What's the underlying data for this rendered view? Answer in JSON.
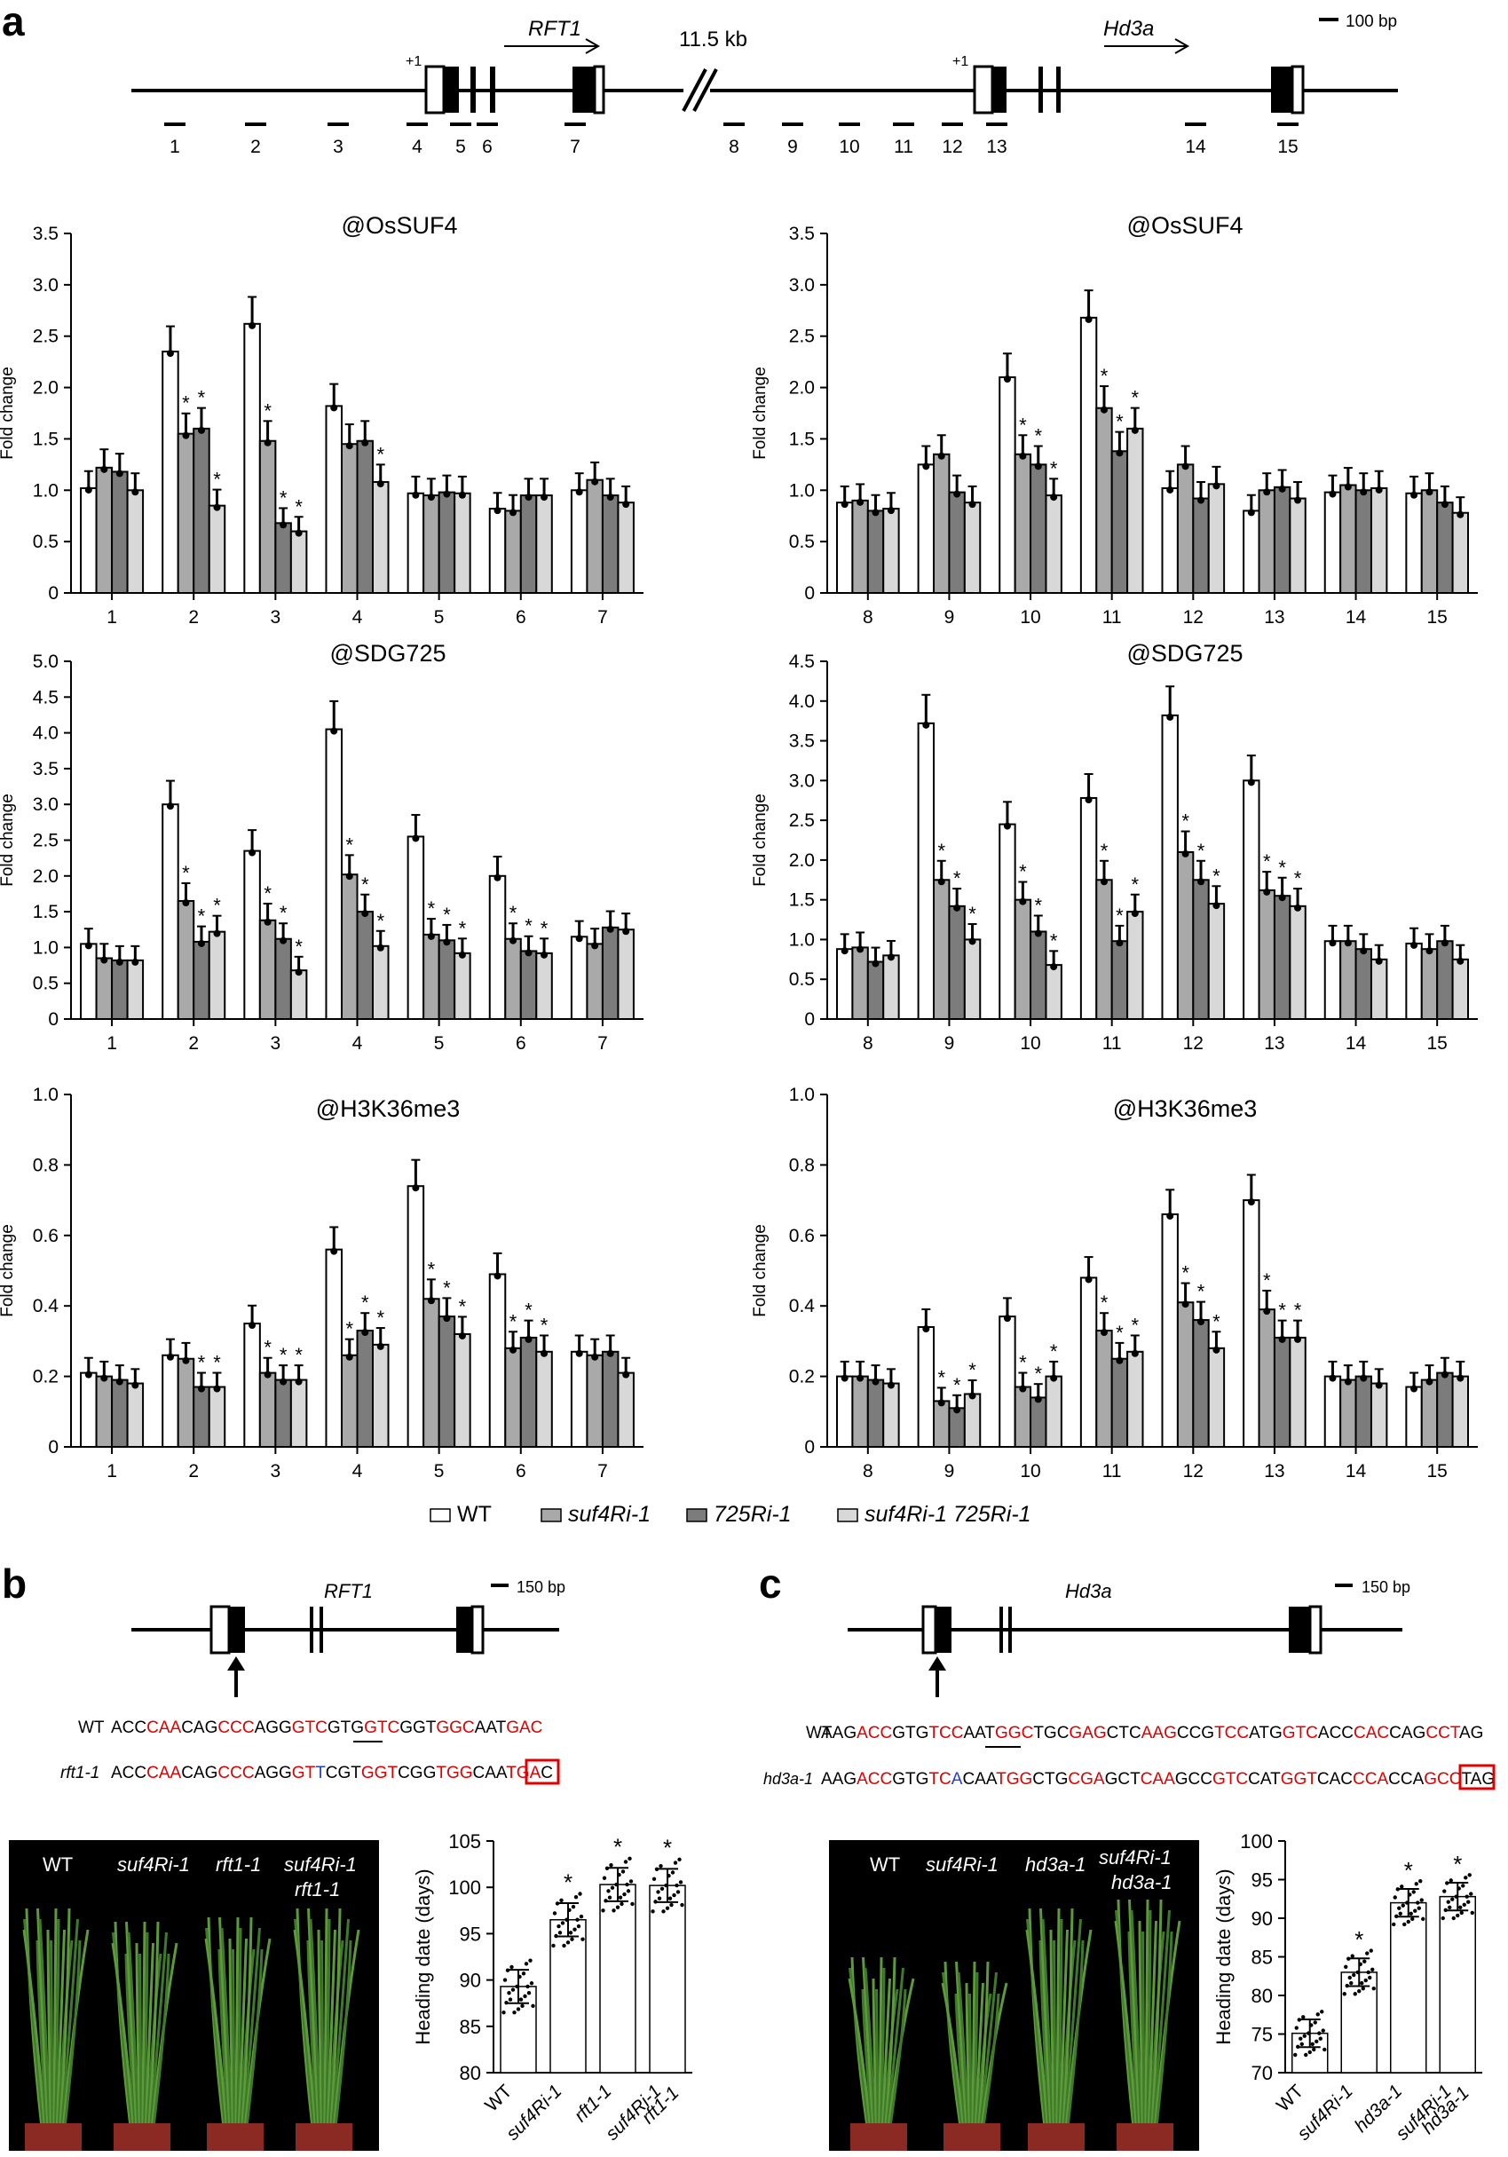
{
  "panels": {
    "a": "a",
    "b": "b",
    "c": "c"
  },
  "panel_a_diagram": {
    "gene1": "RFT1",
    "gene2": "Hd3a",
    "gap_label": "11.5 kb",
    "scale_label": "100 bp",
    "tss": "+1",
    "amplicons": [
      "1",
      "2",
      "3",
      "4",
      "5",
      "6",
      "7",
      "8",
      "9",
      "10",
      "11",
      "12",
      "13",
      "14",
      "15"
    ]
  },
  "legend": [
    {
      "name": "WT",
      "color": "#ffffff"
    },
    {
      "name": "suf4Ri-1",
      "color": "#a9a9a9"
    },
    {
      "name": "725Ri-1",
      "color": "#7c7c7c"
    },
    {
      "name": "suf4Ri-1 725Ri-1",
      "color": "#d8d8d8"
    }
  ],
  "colors": {
    "sequence_highlight": "#e00000",
    "mutation": "#1f3fd0",
    "box": "#e00000"
  },
  "chart_data": [
    {
      "type": "bar",
      "title": "@OsSUF4",
      "ylabel": "Fold change",
      "ylim": [
        0,
        3.5
      ],
      "yticks": [
        "0",
        "0.5",
        "1.0",
        "1.5",
        "2.0",
        "2.5",
        "3.0",
        "3.5"
      ],
      "categories": [
        "1",
        "2",
        "3",
        "4",
        "5",
        "6",
        "7"
      ],
      "series": [
        {
          "name": "WT",
          "values": [
            1.02,
            2.35,
            2.62,
            1.82,
            0.97,
            0.82,
            1.0
          ]
        },
        {
          "name": "suf4Ri-1",
          "values": [
            1.22,
            1.55,
            1.48,
            1.45,
            0.95,
            0.8,
            1.1
          ]
        },
        {
          "name": "725Ri-1",
          "values": [
            1.18,
            1.6,
            0.68,
            1.48,
            0.98,
            0.95,
            0.95
          ]
        },
        {
          "name": "suf4Ri-1 725Ri-1",
          "values": [
            1.0,
            0.85,
            0.6,
            1.08,
            0.97,
            0.95,
            0.88
          ]
        }
      ],
      "sig": [
        [],
        [
          1,
          2,
          3
        ],
        [
          1,
          2,
          3
        ],
        [
          3
        ],
        [],
        [],
        []
      ]
    },
    {
      "type": "bar",
      "title": "@OsSUF4",
      "ylabel": "Fold change",
      "ylim": [
        0,
        3.5
      ],
      "yticks": [
        "0",
        "0.5",
        "1.0",
        "1.5",
        "2.0",
        "2.5",
        "3.0",
        "3.5"
      ],
      "categories": [
        "8",
        "9",
        "10",
        "11",
        "12",
        "13",
        "14",
        "15"
      ],
      "series": [
        {
          "name": "WT",
          "values": [
            0.88,
            1.25,
            2.1,
            2.68,
            1.02,
            0.8,
            0.98,
            0.97
          ]
        },
        {
          "name": "suf4Ri-1",
          "values": [
            0.9,
            1.35,
            1.35,
            1.8,
            1.25,
            1.0,
            1.05,
            1.0
          ]
        },
        {
          "name": "725Ri-1",
          "values": [
            0.8,
            0.98,
            1.25,
            1.38,
            0.92,
            1.03,
            1.0,
            0.88
          ]
        },
        {
          "name": "suf4Ri-1 725Ri-1",
          "values": [
            0.82,
            0.88,
            0.95,
            1.6,
            1.06,
            0.92,
            1.02,
            0.78
          ]
        }
      ],
      "sig": [
        [],
        [],
        [
          1,
          2,
          3
        ],
        [
          1,
          2,
          3
        ],
        [],
        [],
        [],
        []
      ]
    },
    {
      "type": "bar",
      "title": "@SDG725",
      "ylabel": "Fold change",
      "ylim": [
        0,
        5.0
      ],
      "yticks": [
        "0",
        "0.5",
        "1.0",
        "1.5",
        "2.0",
        "2.5",
        "3.0",
        "3.5",
        "4.0",
        "4.5",
        "5.0"
      ],
      "categories": [
        "1",
        "2",
        "3",
        "4",
        "5",
        "6",
        "7"
      ],
      "series": [
        {
          "name": "WT",
          "values": [
            1.05,
            3.0,
            2.35,
            4.05,
            2.55,
            2.0,
            1.15
          ]
        },
        {
          "name": "suf4Ri-1",
          "values": [
            0.85,
            1.65,
            1.38,
            2.02,
            1.18,
            1.12,
            1.05
          ]
        },
        {
          "name": "725Ri-1",
          "values": [
            0.82,
            1.08,
            1.12,
            1.5,
            1.1,
            0.95,
            1.28
          ]
        },
        {
          "name": "suf4Ri-1 725Ri-1",
          "values": [
            0.82,
            1.22,
            0.68,
            1.02,
            0.92,
            0.92,
            1.25
          ]
        }
      ],
      "sig": [
        [],
        [
          1,
          2,
          3
        ],
        [
          1,
          2,
          3
        ],
        [
          1,
          2,
          3
        ],
        [
          1,
          2,
          3
        ],
        [
          1,
          2,
          3
        ],
        []
      ]
    },
    {
      "type": "bar",
      "title": "@SDG725",
      "ylabel": "Fold change",
      "ylim": [
        0,
        4.5
      ],
      "yticks": [
        "0",
        "0.5",
        "1.0",
        "1.5",
        "2.0",
        "2.5",
        "3.0",
        "3.5",
        "4.0",
        "4.5"
      ],
      "categories": [
        "8",
        "9",
        "10",
        "11",
        "12",
        "13",
        "14",
        "15"
      ],
      "series": [
        {
          "name": "WT",
          "values": [
            0.88,
            3.72,
            2.45,
            2.78,
            3.82,
            3.0,
            0.98,
            0.95
          ]
        },
        {
          "name": "suf4Ri-1",
          "values": [
            0.9,
            1.75,
            1.5,
            1.75,
            2.1,
            1.62,
            0.98,
            0.88
          ]
        },
        {
          "name": "725Ri-1",
          "values": [
            0.72,
            1.42,
            1.1,
            0.98,
            1.75,
            1.55,
            0.88,
            0.98
          ]
        },
        {
          "name": "suf4Ri-1 725Ri-1",
          "values": [
            0.8,
            1.0,
            0.68,
            1.35,
            1.45,
            1.42,
            0.75,
            0.75
          ]
        }
      ],
      "sig": [
        [],
        [
          1,
          2,
          3
        ],
        [
          1,
          2,
          3
        ],
        [
          1,
          2,
          3
        ],
        [
          1,
          2,
          3
        ],
        [
          1,
          2,
          3
        ],
        [],
        []
      ]
    },
    {
      "type": "bar",
      "title": "@H3K36me3",
      "ylabel": "Fold change",
      "ylim": [
        0,
        1.0
      ],
      "yticks": [
        "0",
        "0.2",
        "0.4",
        "0.6",
        "0.8",
        "1.0"
      ],
      "categories": [
        "1",
        "2",
        "3",
        "4",
        "5",
        "6",
        "7"
      ],
      "series": [
        {
          "name": "WT",
          "values": [
            0.21,
            0.26,
            0.35,
            0.56,
            0.74,
            0.49,
            0.27
          ]
        },
        {
          "name": "suf4Ri-1",
          "values": [
            0.2,
            0.25,
            0.21,
            0.26,
            0.42,
            0.28,
            0.26
          ]
        },
        {
          "name": "725Ri-1",
          "values": [
            0.19,
            0.17,
            0.19,
            0.33,
            0.37,
            0.31,
            0.27
          ]
        },
        {
          "name": "suf4Ri-1 725Ri-1",
          "values": [
            0.18,
            0.17,
            0.19,
            0.29,
            0.32,
            0.27,
            0.21
          ]
        }
      ],
      "sig": [
        [],
        [
          2,
          3
        ],
        [
          1,
          2,
          3
        ],
        [
          1,
          2,
          3
        ],
        [
          1,
          2,
          3
        ],
        [
          1,
          2,
          3
        ],
        []
      ]
    },
    {
      "type": "bar",
      "title": "@H3K36me3",
      "ylabel": "Fold change",
      "ylim": [
        0,
        1.0
      ],
      "yticks": [
        "0",
        "0.2",
        "0.4",
        "0.6",
        "0.8",
        "1.0"
      ],
      "categories": [
        "8",
        "9",
        "10",
        "11",
        "12",
        "13",
        "14",
        "15"
      ],
      "series": [
        {
          "name": "WT",
          "values": [
            0.2,
            0.34,
            0.37,
            0.48,
            0.66,
            0.7,
            0.2,
            0.17
          ]
        },
        {
          "name": "suf4Ri-1",
          "values": [
            0.2,
            0.13,
            0.17,
            0.33,
            0.41,
            0.39,
            0.19,
            0.19
          ]
        },
        {
          "name": "725Ri-1",
          "values": [
            0.19,
            0.11,
            0.14,
            0.25,
            0.36,
            0.31,
            0.2,
            0.21
          ]
        },
        {
          "name": "suf4Ri-1 725Ri-1",
          "values": [
            0.18,
            0.15,
            0.2,
            0.27,
            0.28,
            0.31,
            0.18,
            0.2
          ]
        }
      ],
      "sig": [
        [],
        [
          1,
          2,
          3
        ],
        [
          1,
          2,
          3
        ],
        [
          1,
          2,
          3
        ],
        [
          1,
          2,
          3
        ],
        [
          1,
          2,
          3
        ],
        [],
        []
      ]
    },
    {
      "type": "scatter",
      "ylabel": "Heading date (days)",
      "ylim": [
        80,
        105
      ],
      "yticks": [
        "80",
        "85",
        "90",
        "95",
        "100",
        "105"
      ],
      "categories": [
        "WT",
        "suf4Ri-1",
        "rft1-1",
        "suf4Ri-1 rft1-1"
      ],
      "means": [
        89.3,
        96.5,
        100.3,
        100.2
      ],
      "sig": [
        false,
        true,
        true,
        true
      ]
    },
    {
      "type": "scatter",
      "ylabel": "Heading date (days)",
      "ylim": [
        70,
        100
      ],
      "yticks": [
        "70",
        "75",
        "80",
        "85",
        "90",
        "95",
        "100"
      ],
      "categories": [
        "WT",
        "suf4Ri-1",
        "hd3a-1",
        "suf4Ri-1 hd3a-1"
      ],
      "means": [
        75.1,
        83.0,
        92.0,
        92.8
      ],
      "sig": [
        false,
        true,
        true,
        true
      ]
    }
  ],
  "panel_b": {
    "gene": "RFT1",
    "scale": "150 bp",
    "wt_label": "WT",
    "mut_label": "rft1-1",
    "wt_seq": [
      [
        "ACC",
        "k"
      ],
      [
        "CAA",
        "r"
      ],
      [
        "CAG",
        "k"
      ],
      [
        "CCC",
        "r"
      ],
      [
        "AGG",
        "k"
      ],
      [
        "GTC",
        "r"
      ],
      [
        "GTG",
        "k"
      ],
      [
        "GTC",
        "r"
      ],
      [
        "GGT",
        "k"
      ],
      [
        "GGC",
        "r"
      ],
      [
        "AAT",
        "k"
      ],
      [
        "GAC",
        "r"
      ]
    ],
    "mut_seq": [
      [
        "ACC",
        "k"
      ],
      [
        "CAA",
        "r"
      ],
      [
        "CAG",
        "k"
      ],
      [
        "CCC",
        "r"
      ],
      [
        "AGG",
        "k"
      ],
      [
        "GT",
        "r"
      ],
      [
        "T",
        "b"
      ],
      [
        "CGT",
        "k"
      ],
      [
        "GGT",
        "r"
      ],
      [
        "CGG",
        "k"
      ],
      [
        "TGG",
        "r"
      ],
      [
        "CAA",
        "k"
      ],
      [
        "TGA",
        "r"
      ],
      [
        "C",
        "k"
      ]
    ],
    "photo_labels": [
      "WT",
      "suf4Ri-1",
      "rft1-1",
      "suf4Ri-1",
      "rft1-1"
    ]
  },
  "panel_c": {
    "gene": "Hd3a",
    "scale": "150 bp",
    "wt_label": "WT",
    "mut_label": "hd3a-1",
    "wt_seq": [
      [
        "AAG",
        "k"
      ],
      [
        "ACC",
        "r"
      ],
      [
        "GTG",
        "k"
      ],
      [
        "TCC",
        "r"
      ],
      [
        "AAT",
        "k"
      ],
      [
        "GGC",
        "r"
      ],
      [
        "TGC",
        "k"
      ],
      [
        "GAG",
        "r"
      ],
      [
        "CTC",
        "k"
      ],
      [
        "AAG",
        "r"
      ],
      [
        "CCG",
        "k"
      ],
      [
        "TCC",
        "r"
      ],
      [
        "ATG",
        "k"
      ],
      [
        "GTC",
        "r"
      ],
      [
        "ACC",
        "k"
      ],
      [
        "CAC",
        "r"
      ],
      [
        "CAG",
        "k"
      ],
      [
        "CCT",
        "r"
      ],
      [
        "AG",
        "k"
      ]
    ],
    "mut_seq": [
      [
        "AAG",
        "k"
      ],
      [
        "ACC",
        "r"
      ],
      [
        "GTG",
        "k"
      ],
      [
        "TC",
        "r"
      ],
      [
        "A",
        "b"
      ],
      [
        "CAA",
        "k"
      ],
      [
        "TGG",
        "r"
      ],
      [
        "CTG",
        "k"
      ],
      [
        "CGA",
        "r"
      ],
      [
        "GCT",
        "k"
      ],
      [
        "CAA",
        "r"
      ],
      [
        "GCC",
        "k"
      ],
      [
        "GTC",
        "r"
      ],
      [
        "CAT",
        "k"
      ],
      [
        "GGT",
        "r"
      ],
      [
        "CAC",
        "k"
      ],
      [
        "CCA",
        "r"
      ],
      [
        "CCA",
        "k"
      ],
      [
        "GCC",
        "r"
      ],
      [
        "TAG",
        "k"
      ]
    ],
    "photo_labels": [
      "WT",
      "suf4Ri-1",
      "hd3a-1",
      "suf4Ri-1",
      "hd3a-1"
    ]
  }
}
